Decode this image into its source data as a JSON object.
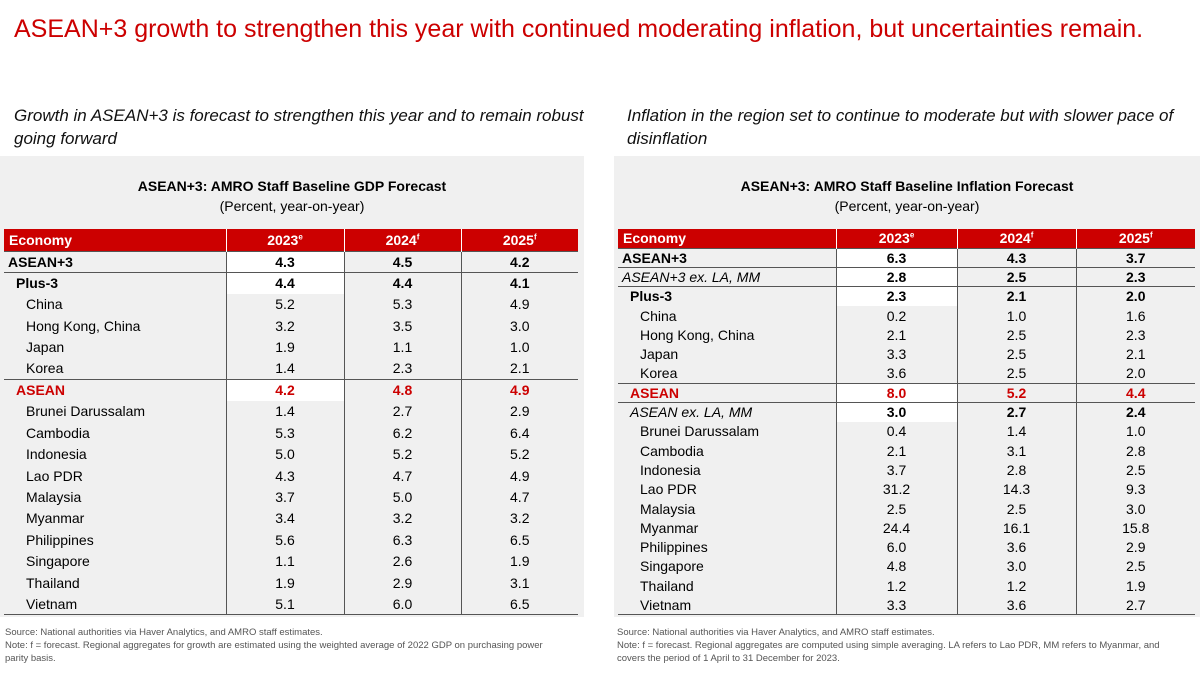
{
  "title": "ASEAN+3 growth to strengthen this year with continued moderating inflation, but uncertainties remain.",
  "left": {
    "subtitle": "Growth in ASEAN+3 is forecast to strengthen this year and to remain robust going forward",
    "table_title": "ASEAN+3: AMRO  Staff Baseline GDP Forecast",
    "table_units": "(Percent, year-on-year)",
    "header": {
      "economy": "Economy",
      "y1": "2023",
      "y1_sup": "e",
      "y2": "2024",
      "y2_sup": "f",
      "y3": "2025",
      "y3_sup": "f"
    },
    "rows": [
      {
        "name": "ASEAN+3",
        "style": "lvl0",
        "v": [
          "4.3",
          "4.5",
          "4.2"
        ]
      },
      {
        "name": "Plus-3",
        "style": "lvl1",
        "v": [
          "4.4",
          "4.4",
          "4.1"
        ]
      },
      {
        "name": "China",
        "style": "lvl2",
        "v": [
          "5.2",
          "5.3",
          "4.9"
        ]
      },
      {
        "name": "Hong Kong, China",
        "style": "lvl2",
        "v": [
          "3.2",
          "3.5",
          "3.0"
        ]
      },
      {
        "name": "Japan",
        "style": "lvl2",
        "v": [
          "1.9",
          "1.1",
          "1.0"
        ]
      },
      {
        "name": "Korea",
        "style": "lvl2",
        "v": [
          "1.4",
          "2.3",
          "2.1"
        ]
      },
      {
        "name": "ASEAN",
        "style": "lvl1 red",
        "v": [
          "4.2",
          "4.8",
          "4.9"
        ]
      },
      {
        "name": "Brunei Darussalam",
        "style": "lvl2",
        "v": [
          "1.4",
          "2.7",
          "2.9"
        ]
      },
      {
        "name": "Cambodia",
        "style": "lvl2",
        "v": [
          "5.3",
          "6.2",
          "6.4"
        ]
      },
      {
        "name": "Indonesia",
        "style": "lvl2",
        "v": [
          "5.0",
          "5.2",
          "5.2"
        ]
      },
      {
        "name": "Lao PDR",
        "style": "lvl2",
        "v": [
          "4.3",
          "4.7",
          "4.9"
        ]
      },
      {
        "name": "Malaysia",
        "style": "lvl2",
        "v": [
          "3.7",
          "5.0",
          "4.7"
        ]
      },
      {
        "name": "Myanmar",
        "style": "lvl2",
        "v": [
          "3.4",
          "3.2",
          "3.2"
        ]
      },
      {
        "name": "Philippines",
        "style": "lvl2",
        "v": [
          "5.6",
          "6.3",
          "6.5"
        ]
      },
      {
        "name": "Singapore",
        "style": "lvl2",
        "v": [
          "1.1",
          "2.6",
          "1.9"
        ]
      },
      {
        "name": "Thailand",
        "style": "lvl2",
        "v": [
          "1.9",
          "2.9",
          "3.1"
        ]
      },
      {
        "name": "Vietnam",
        "style": "lvl2 last",
        "v": [
          "5.1",
          "6.0",
          "6.5"
        ]
      }
    ],
    "note_source": "Source: National authorities via Haver Analytics, and AMRO staff estimates.",
    "note_text": "Note:  f = forecast. Regional aggregates for growth are estimated using the weighted average of 2022 GDP  on purchasing power parity basis."
  },
  "right": {
    "subtitle": "Inflation in the region set to continue to moderate but with slower pace of disinflation",
    "table_title": "ASEAN+3: AMRO  Staff Baseline Inflation Forecast",
    "table_units": "(Percent, year-on-year)",
    "header": {
      "economy": "Economy",
      "y1": "2023",
      "y1_sup": "e",
      "y2": "2024",
      "y2_sup": "f",
      "y3": "2025",
      "y3_sup": "f"
    },
    "rows": [
      {
        "name": "ASEAN+3",
        "style": "lvl0",
        "v": [
          "6.3",
          "4.3",
          "3.7"
        ]
      },
      {
        "name": "ASEAN+3 ex. LA, MM",
        "style": "lvl0i",
        "v": [
          "2.8",
          "2.5",
          "2.3"
        ]
      },
      {
        "name": "Plus-3",
        "style": "lvl1",
        "v": [
          "2.3",
          "2.1",
          "2.0"
        ]
      },
      {
        "name": "China",
        "style": "lvl2",
        "v": [
          "0.2",
          "1.0",
          "1.6"
        ]
      },
      {
        "name": "Hong Kong, China",
        "style": "lvl2",
        "v": [
          "2.1",
          "2.5",
          "2.3"
        ]
      },
      {
        "name": "Japan",
        "style": "lvl2",
        "v": [
          "3.3",
          "2.5",
          "2.1"
        ]
      },
      {
        "name": "Korea",
        "style": "lvl2",
        "v": [
          "3.6",
          "2.5",
          "2.0"
        ]
      },
      {
        "name": "ASEAN",
        "style": "lvl1 red",
        "v": [
          "8.0",
          "5.2",
          "4.4"
        ]
      },
      {
        "name": "ASEAN ex. LA, MM",
        "style": "lvl1i",
        "v": [
          "3.0",
          "2.7",
          "2.4"
        ]
      },
      {
        "name": "Brunei Darussalam",
        "style": "lvl2",
        "v": [
          "0.4",
          "1.4",
          "1.0"
        ]
      },
      {
        "name": "Cambodia",
        "style": "lvl2",
        "v": [
          "2.1",
          "3.1",
          "2.8"
        ]
      },
      {
        "name": "Indonesia",
        "style": "lvl2",
        "v": [
          "3.7",
          "2.8",
          "2.5"
        ]
      },
      {
        "name": "Lao PDR",
        "style": "lvl2",
        "v": [
          "31.2",
          "14.3",
          "9.3"
        ]
      },
      {
        "name": "Malaysia",
        "style": "lvl2",
        "v": [
          "2.5",
          "2.5",
          "3.0"
        ]
      },
      {
        "name": "Myanmar",
        "style": "lvl2",
        "v": [
          "24.4",
          "16.1",
          "15.8"
        ]
      },
      {
        "name": "Philippines",
        "style": "lvl2",
        "v": [
          "6.0",
          "3.6",
          "2.9"
        ]
      },
      {
        "name": "Singapore",
        "style": "lvl2",
        "v": [
          "4.8",
          "3.0",
          "2.5"
        ]
      },
      {
        "name": "Thailand",
        "style": "lvl2",
        "v": [
          "1.2",
          "1.2",
          "1.9"
        ]
      },
      {
        "name": "Vietnam",
        "style": "lvl2 last",
        "v": [
          "3.3",
          "3.6",
          "2.7"
        ]
      }
    ],
    "note_source": "Source: National authorities via Haver Analytics, and AMRO staff estimates.",
    "note_text": "Note:  f = forecast. Regional aggregates are computed using simple averaging. LA refers to Lao PDR,  MM  refers to Myanmar, and covers the period of 1 April to 31 December for 2023."
  },
  "colors": {
    "accent": "#cc0000",
    "panel_bg": "#f0f0f0",
    "text": "#000000"
  }
}
